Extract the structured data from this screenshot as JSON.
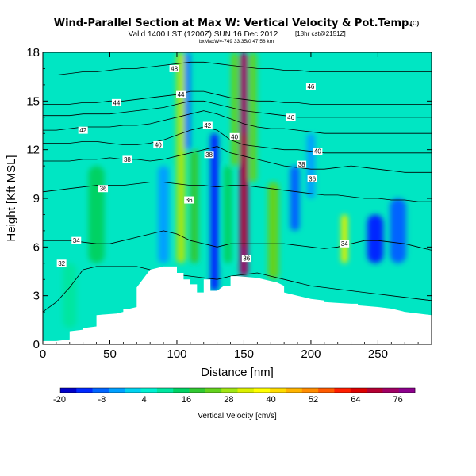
{
  "header": {
    "title": "Wind-Parallel Section at Max W: Vertical Velocity & Pot.Temp.",
    "copyright": "(C)",
    "valid_line": "Valid 1400 LST (1200Z) SUN 16 Dec 2012",
    "run_info": "[18hr cst@2151Z]",
    "location_line": "bxMaxW=-749 33.35/0 47.58 km"
  },
  "chart_data": {
    "type": "heatmap",
    "title": "Wind-Parallel Section at Max W: Vertical Velocity & Pot.Temp.",
    "xlabel": "Distance [nm]",
    "ylabel": "Height [Kft MSL]",
    "xlim": [
      0,
      290
    ],
    "ylim": [
      0,
      18
    ],
    "x_ticks": [
      "0",
      "50",
      "100",
      "150",
      "200",
      "250"
    ],
    "y_ticks": [
      "0",
      "3",
      "6",
      "9",
      "12",
      "15",
      "18"
    ],
    "colorbar": {
      "label": "Vertical Velocity [cm/s]",
      "tick_labels": [
        "-20",
        "-8",
        "4",
        "16",
        "28",
        "40",
        "52",
        "64",
        "76"
      ],
      "colors": [
        "#0000c8",
        "#0028ff",
        "#0064ff",
        "#00a0ff",
        "#00d2f0",
        "#00f0d2",
        "#00e6a0",
        "#00d264",
        "#32c832",
        "#64d21e",
        "#a0e614",
        "#dcf000",
        "#ffff00",
        "#ffdc00",
        "#ffb400",
        "#ff8c00",
        "#ff5a00",
        "#ff1e00",
        "#dc0000",
        "#b40032",
        "#a00064",
        "#8c008c"
      ]
    },
    "terrain": {
      "x": [
        0,
        10,
        20,
        20,
        30,
        30,
        40,
        40,
        55,
        60,
        60,
        65,
        70,
        70,
        80,
        90,
        100,
        100,
        105,
        105,
        110,
        110,
        115,
        115,
        120,
        120,
        125,
        125,
        130,
        135,
        140,
        140,
        145,
        145,
        160,
        170,
        175,
        180,
        180,
        190,
        200,
        210,
        210,
        230,
        235,
        235,
        250,
        260,
        270,
        280,
        290
      ],
      "height": [
        0.2,
        0.2,
        0.3,
        0.8,
        0.9,
        1.0,
        1.1,
        1.8,
        1.9,
        2.0,
        2.2,
        2.2,
        2.3,
        3.5,
        4.6,
        4.8,
        4.8,
        4.4,
        4.4,
        4.0,
        4.0,
        3.7,
        3.7,
        3.2,
        3.2,
        4.0,
        4.0,
        3.3,
        3.3,
        3.6,
        3.6,
        4.2,
        4.2,
        4.2,
        4.1,
        3.9,
        3.8,
        3.6,
        3.2,
        3.0,
        2.8,
        2.7,
        2.6,
        2.5,
        2.5,
        2.4,
        2.3,
        2.2,
        2.0,
        1.9,
        1.8
      ]
    },
    "vertical_velocity_features": [
      {
        "x": 150,
        "z_from": 4.2,
        "z_to": 18,
        "w": 75,
        "width": 6
      },
      {
        "x": 150,
        "z_from": 6,
        "z_to": 13,
        "w": 70,
        "width": 4
      },
      {
        "x": 138,
        "z_from": 5,
        "z_to": 11,
        "w": 14,
        "width": 6
      },
      {
        "x": 143,
        "z_from": 11,
        "z_to": 18,
        "w": 22,
        "width": 5
      },
      {
        "x": 157,
        "z_from": 10,
        "z_to": 18,
        "w": 26,
        "width": 5
      },
      {
        "x": 103,
        "z_from": 5,
        "z_to": 18,
        "w": 30,
        "width": 7
      },
      {
        "x": 113,
        "z_from": 5,
        "z_to": 12,
        "w": 18,
        "width": 6
      },
      {
        "x": 128,
        "z_from": 3.3,
        "z_to": 13,
        "w": -14,
        "width": 6
      },
      {
        "x": 108,
        "z_from": 12,
        "z_to": 18,
        "w": -8,
        "width": 4
      },
      {
        "x": 90,
        "z_from": 5,
        "z_to": 11,
        "w": -4,
        "width": 8
      },
      {
        "x": 172,
        "z_from": 4,
        "z_to": 10,
        "w": 22,
        "width": 8
      },
      {
        "x": 188,
        "z_from": 7,
        "z_to": 11,
        "w": -8,
        "width": 7
      },
      {
        "x": 200,
        "z_from": 9,
        "z_to": 13,
        "w": -6,
        "width": 6
      },
      {
        "x": 225,
        "z_from": 5,
        "z_to": 8,
        "w": 32,
        "width": 5
      },
      {
        "x": 248,
        "z_from": 5,
        "z_to": 8,
        "w": -14,
        "width": 12
      },
      {
        "x": 265,
        "z_from": 5,
        "z_to": 9,
        "w": -10,
        "width": 12
      },
      {
        "x": 40,
        "z_from": 5,
        "z_to": 11,
        "w": 16,
        "width": 12
      },
      {
        "x": 20,
        "z_from": 1,
        "z_to": 5,
        "w": 10,
        "width": 10
      }
    ],
    "theta_contours": [
      {
        "label": "32",
        "label_x": 14,
        "label_z": 5.0,
        "z": [
          2.0,
          2.6,
          3.5,
          4.6,
          4.8,
          4.8,
          4.8,
          4.8,
          4.6,
          4.4,
          4.3,
          4.2,
          4.1,
          4.0,
          4.2,
          4.3,
          4.4,
          4.2,
          4.0,
          3.8,
          3.6,
          3.5,
          3.4,
          3.3,
          3.2,
          3.1,
          3.0,
          2.9,
          2.8,
          2.7
        ]
      },
      {
        "label": "34",
        "label_x": 25,
        "label_z": 6.4,
        "z": [
          6.4,
          6.4,
          6.4,
          6.3,
          6.2,
          6.2,
          6.4,
          6.6,
          6.8,
          7.0,
          6.8,
          6.4,
          6.2,
          6.0,
          6.2,
          6.2,
          6.2,
          6.2,
          6.2,
          6.1,
          6.0,
          5.9,
          6.0,
          6.2,
          6.4,
          6.4,
          6.3,
          6.2,
          6.0,
          5.8
        ]
      },
      {
        "label": "36",
        "label_x": 45,
        "label_z": 9.6,
        "z": [
          9.4,
          9.5,
          9.6,
          9.7,
          9.8,
          9.8,
          9.8,
          9.9,
          10.0,
          10.0,
          9.9,
          9.8,
          9.8,
          9.7,
          9.8,
          9.8,
          9.7,
          9.6,
          9.5,
          9.4,
          9.3,
          9.2,
          9.2,
          9.1,
          9.0,
          9.0,
          8.9,
          8.9,
          8.8,
          8.8
        ]
      },
      {
        "label": "38",
        "label_x": 63,
        "label_z": 11.4,
        "z": [
          11.3,
          11.3,
          11.3,
          11.4,
          11.4,
          11.5,
          11.4,
          11.4,
          11.3,
          11.4,
          11.6,
          11.8,
          12.0,
          12.2,
          11.8,
          11.6,
          11.4,
          11.2,
          11.0,
          10.9,
          10.8,
          10.8,
          10.9,
          11.0,
          10.9,
          10.8,
          10.7,
          10.6,
          10.6,
          10.6
        ]
      },
      {
        "label": "40",
        "label_x": 86,
        "label_z": 12.3,
        "z": [
          12.4,
          12.4,
          12.4,
          12.5,
          12.5,
          12.4,
          12.3,
          12.3,
          12.4,
          12.6,
          12.9,
          13.2,
          13.4,
          13.2,
          12.6,
          12.3,
          12.2,
          12.1,
          12.0,
          12.0,
          11.9,
          11.8,
          11.8,
          11.8,
          11.8,
          11.8,
          11.8,
          11.8,
          11.8,
          11.8
        ]
      },
      {
        "label": "42",
        "label_x": 30,
        "label_z": 13.2,
        "z": [
          13.2,
          13.2,
          13.3,
          13.4,
          13.4,
          13.4,
          13.5,
          13.5,
          13.6,
          13.8,
          14.0,
          14.2,
          14.4,
          14.2,
          13.9,
          13.6,
          13.4,
          13.3,
          13.3,
          13.2,
          13.1,
          13.0,
          13.0,
          13.0,
          13.0,
          13.0,
          13.0,
          13.0,
          13.0,
          13.0
        ]
      },
      {
        "label": "44",
        "label_x": 55,
        "label_z": 14.9,
        "z": [
          14.8,
          14.8,
          14.8,
          14.9,
          14.9,
          15.0,
          15.0,
          15.1,
          15.2,
          15.3,
          15.4,
          15.6,
          15.6,
          15.4,
          15.2,
          15.1,
          15.0,
          15.0,
          14.9,
          14.9,
          14.8,
          14.8,
          14.8,
          14.8,
          14.8,
          14.8,
          14.8,
          14.8,
          14.8,
          14.8
        ]
      },
      {
        "label": "46",
        "label_x": 185,
        "label_z": 14.0,
        "z": [
          14.1,
          14.1,
          14.1,
          14.2,
          14.2,
          14.2,
          14.3,
          14.4,
          14.5,
          14.6,
          14.8,
          15.0,
          15.0,
          14.8,
          14.6,
          14.4,
          14.3,
          14.2,
          14.1,
          14.0,
          14.0,
          14.0,
          14.0,
          14.0,
          14.0,
          14.0,
          14.0,
          14.0,
          14.0,
          14.0
        ]
      },
      {
        "label": "48",
        "label_x": 98,
        "label_z": 17.0,
        "z": [
          16.6,
          16.6,
          16.7,
          16.8,
          16.8,
          16.9,
          17.0,
          17.0,
          17.1,
          17.2,
          17.3,
          17.4,
          17.4,
          17.3,
          17.2,
          17.1,
          17.0,
          17.0,
          16.9,
          16.9,
          16.8,
          16.8,
          16.8,
          16.8,
          16.8,
          16.8,
          16.8,
          16.8,
          16.8,
          16.8
        ]
      }
    ],
    "extra_labels": [
      {
        "text": "44",
        "x": 103,
        "z": 15.4
      },
      {
        "text": "42",
        "x": 123,
        "z": 13.5
      },
      {
        "text": "40",
        "x": 143,
        "z": 12.8
      },
      {
        "text": "38",
        "x": 124,
        "z": 11.7
      },
      {
        "text": "36",
        "x": 109,
        "z": 8.9
      },
      {
        "text": "36",
        "x": 152,
        "z": 5.3
      },
      {
        "text": "46",
        "x": 200,
        "z": 15.9
      },
      {
        "text": "40",
        "x": 205,
        "z": 11.9
      },
      {
        "text": "38",
        "x": 193,
        "z": 11.1
      },
      {
        "text": "36",
        "x": 201,
        "z": 10.2
      },
      {
        "text": "34",
        "x": 225,
        "z": 6.2
      }
    ]
  }
}
